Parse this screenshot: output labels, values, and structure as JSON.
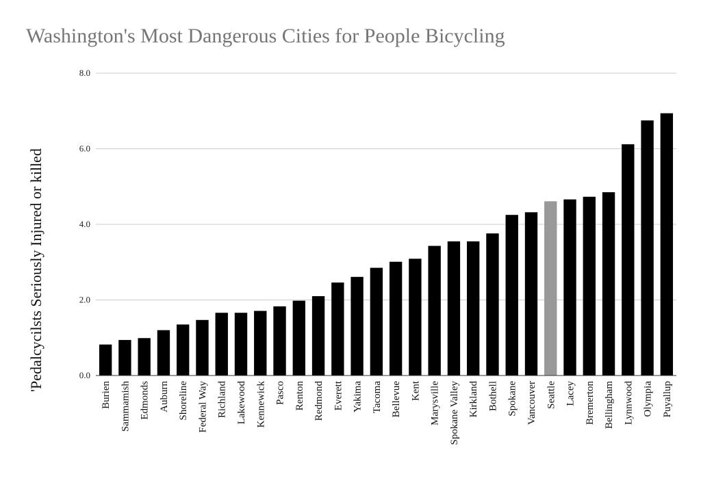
{
  "chart_data": {
    "type": "bar",
    "title": "Washington's Most Dangerous Cities for People Bicycling",
    "xlabel": "",
    "ylabel": "'Pedalcycilsts Seriously Injured or killed",
    "ylim": [
      0,
      8
    ],
    "yticks": [
      "0.0",
      "2.0",
      "4.0",
      "6.0",
      "8.0"
    ],
    "grid": true,
    "categories": [
      "Burien",
      "Sammamish",
      "Edmonds",
      "Auburn",
      "Shoreline",
      "Federal Way",
      "Richland",
      "Lakewood",
      "Kennewick",
      "Pasco",
      "Renton",
      "Redmond",
      "Everett",
      "Yakima",
      "Tacoma",
      "Bellevue",
      "Kent",
      "Marysville",
      "Spokane Valley",
      "Kirkland",
      "Bothell",
      "Spokane",
      "Vancouver",
      "Seattle",
      "Lacey",
      "Bremerton",
      "Bellingham",
      "Lynnwood",
      "Olympia",
      "Puyallup"
    ],
    "values": [
      0.82,
      0.94,
      0.99,
      1.2,
      1.35,
      1.47,
      1.66,
      1.66,
      1.71,
      1.83,
      1.98,
      2.1,
      2.46,
      2.61,
      2.85,
      3.01,
      3.09,
      3.43,
      3.55,
      3.55,
      3.76,
      4.25,
      4.32,
      4.61,
      4.66,
      4.73,
      4.85,
      6.12,
      6.75,
      6.94
    ],
    "highlight": "Seattle",
    "colors": {
      "bar": "#000000",
      "highlight_bar": "#999999",
      "title": "#757575",
      "grid": "#cccccc"
    }
  }
}
